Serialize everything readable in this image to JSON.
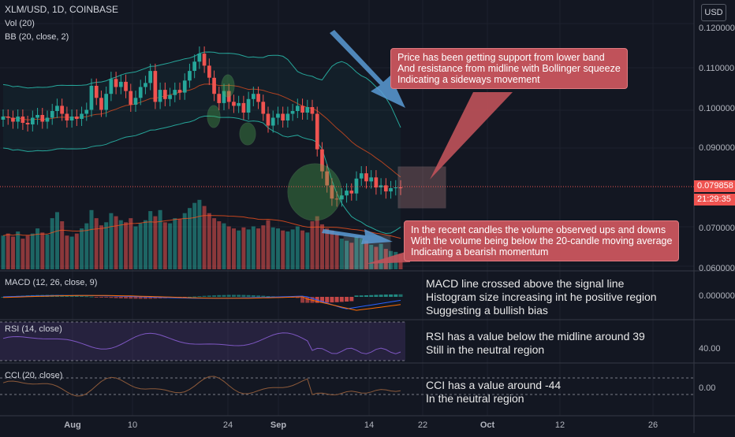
{
  "header": {
    "symbol_line": "XLM/USD, 1D, COINBASE",
    "vol_label": "Vol (20)",
    "bb_label": "BB (20, close, 2)",
    "macd_label": "MACD (12, 26, close, 9)",
    "rsi_label": "RSI (14, close)",
    "cci_label": "CCI (20, close)"
  },
  "toolbar": {
    "currency_label": "USD"
  },
  "price_axis": {
    "ticks": [
      "0.120000",
      "0.110000",
      "0.100000",
      "0.090000",
      "0.070000",
      "0.060000"
    ],
    "current_price": "0.079858",
    "countdown": "21:29:35"
  },
  "macd_axis": {
    "ticks": [
      "0.000000"
    ]
  },
  "rsi_axis": {
    "ticks": [
      "40.00"
    ]
  },
  "cci_axis": {
    "ticks": [
      "0.00"
    ]
  },
  "time_axis": {
    "ticks": [
      "Aug",
      "10",
      "24",
      "Sep",
      "14",
      "22",
      "Oct",
      "12",
      "26"
    ]
  },
  "annotations": {
    "bb_callout": [
      "Price has been getting support from lower band",
      "And resistance from midline with Bollinger squeeze",
      "Indicating a sideways movement"
    ],
    "vol_callout": [
      "In the recent candles the volume observed ups and downs",
      "With the volume being below the 20-candle moving average",
      "Indicating a bearish momentum"
    ],
    "macd_note": [
      "MACD line crossed above the signal line",
      "Histogram size increasing int he positive region",
      "Suggesting a bullish bias"
    ],
    "rsi_note": [
      "RSI has a value below the midline around 39",
      "Still in the neutral region"
    ],
    "cci_note": [
      "CCI has a value around -44",
      "In the neutral region"
    ]
  },
  "colors": {
    "background": "#131722",
    "up": "#26a69a",
    "down": "#ef5350",
    "bb_band": "#26a69a",
    "bb_basis": "#f4511e",
    "macd": "#2962ff",
    "signal": "#ff6d00",
    "rsi": "#7e57c2",
    "cci": "#8d5a3a",
    "callout": "#c0525a",
    "arrow": "#5b9bd5"
  },
  "chart_data": {
    "type": "candlestick",
    "symbol": "XLM/USD",
    "interval": "1D",
    "exchange": "COINBASE",
    "ylim": [
      0.059,
      0.123
    ],
    "close": [
      0.0978,
      0.0975,
      0.0965,
      0.0978,
      0.0962,
      0.0958,
      0.0975,
      0.0982,
      0.0965,
      0.0975,
      0.0992,
      0.1005,
      0.0985,
      0.0968,
      0.0978,
      0.0972,
      0.0985,
      0.0995,
      0.1055,
      0.1025,
      0.0995,
      0.1035,
      0.1072,
      0.1052,
      0.1065,
      0.1042,
      0.1008,
      0.1025,
      0.1052,
      0.1062,
      0.1092,
      0.1015,
      0.1045,
      0.1022,
      0.1032,
      0.1045,
      0.1038,
      0.1068,
      0.1092,
      0.1115,
      0.1135,
      0.1105,
      0.1075,
      0.1035,
      0.1012,
      0.1042,
      0.1015,
      0.1005,
      0.1012,
      0.0988,
      0.1022,
      0.1035,
      0.1015,
      0.0985,
      0.0955,
      0.0975,
      0.0985,
      0.0968,
      0.0985,
      0.0992,
      0.1005,
      0.0988,
      0.1002,
      0.0985,
      0.0895,
      0.084,
      0.0805,
      0.0772,
      0.077,
      0.078,
      0.0792,
      0.0785,
      0.0822,
      0.0835,
      0.0815,
      0.0825,
      0.08,
      0.0805,
      0.079,
      0.0798,
      0.08,
      0.0799
    ],
    "volume": [
      0.33,
      0.35,
      0.32,
      0.37,
      0.3,
      0.33,
      0.35,
      0.4,
      0.36,
      0.34,
      0.5,
      0.56,
      0.47,
      0.33,
      0.32,
      0.35,
      0.4,
      0.45,
      0.58,
      0.5,
      0.43,
      0.46,
      0.55,
      0.52,
      0.48,
      0.46,
      0.5,
      0.42,
      0.45,
      0.48,
      0.57,
      0.52,
      0.58,
      0.46,
      0.45,
      0.5,
      0.49,
      0.55,
      0.6,
      0.65,
      0.68,
      0.62,
      0.55,
      0.5,
      0.47,
      0.45,
      0.42,
      0.4,
      0.38,
      0.41,
      0.39,
      0.42,
      0.4,
      0.43,
      0.48,
      0.41,
      0.4,
      0.38,
      0.37,
      0.39,
      0.42,
      0.38,
      0.36,
      0.47,
      0.52,
      0.44,
      0.4,
      0.38,
      0.35,
      0.3,
      0.28,
      0.26,
      0.32,
      0.3,
      0.28,
      0.24,
      0.22,
      0.25,
      0.2,
      0.18,
      0.17,
      0.15
    ],
    "rsi_last": 39,
    "cci_last": -44
  }
}
